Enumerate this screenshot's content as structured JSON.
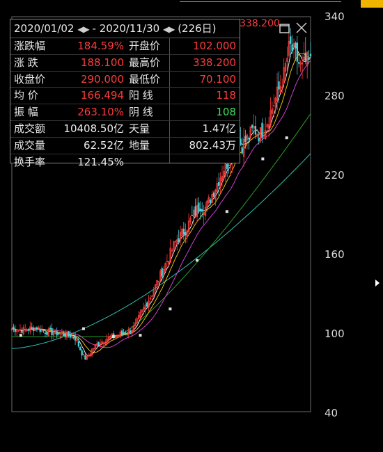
{
  "stats": {
    "date_from": "2020/01/02",
    "date_to": "2020/11/30",
    "sep": "-",
    "days": "(226日)",
    "rows": [
      {
        "l1": "涨跌幅",
        "v1": "184.59%",
        "c1": "red",
        "l2": "开盘价",
        "v2": "102.000",
        "c2": "red"
      },
      {
        "l1": "涨  跌",
        "v1": "188.100",
        "c1": "red",
        "l2": "最高价",
        "v2": "338.200",
        "c2": "red"
      },
      {
        "l1": "收盘价",
        "v1": "290.000",
        "c1": "red",
        "l2": "最低价",
        "v2": "70.100",
        "c2": "red"
      },
      {
        "l1": "均  价",
        "v1": "166.494",
        "c1": "red",
        "l2": "阳  线",
        "v2": "118",
        "c2": "red"
      },
      {
        "l1": "振  幅",
        "v1": "263.10%",
        "c1": "red",
        "l2": "阴  线",
        "v2": "108",
        "c2": "green"
      },
      {
        "l1": "成交额",
        "v1": "10408.50亿",
        "c1": "white",
        "l2": "天量",
        "v2": "1.47亿",
        "c2": "white"
      },
      {
        "l1": "成交量",
        "v1": "62.52亿",
        "c1": "white",
        "l2": "地量",
        "v2": "802.43万",
        "c2": "white"
      },
      {
        "l1": "换手率",
        "v1": "121.45%",
        "c1": "white",
        "l2": "",
        "v2": "",
        "c2": "white"
      }
    ]
  },
  "max_price_label": "338.200",
  "icons": {
    "restore": "restore-icon",
    "close": "close-icon",
    "arrow_right": "caret-right-icon"
  },
  "colors": {
    "up": "#ff3b3b",
    "down": "#3ee05a",
    "ma5": "#e8e8e8",
    "ma10": "#f0c000",
    "ma20": "#d040d0",
    "ma60": "#2aa02a",
    "ma120": "#30c0b0"
  },
  "chart_data": {
    "type": "candlestick",
    "y_ticks": [
      340,
      280,
      220,
      160,
      100,
      40
    ],
    "ylim": [
      40,
      340
    ],
    "close_path": [
      [
        0,
        103
      ],
      [
        0.04,
        102
      ],
      [
        0.08,
        104
      ],
      [
        0.11,
        101
      ],
      [
        0.14,
        100
      ],
      [
        0.17,
        99
      ],
      [
        0.19,
        98
      ],
      [
        0.21,
        97
      ],
      [
        0.22,
        92
      ],
      [
        0.24,
        82
      ],
      [
        0.25,
        80
      ],
      [
        0.27,
        88
      ],
      [
        0.29,
        92
      ],
      [
        0.32,
        96
      ],
      [
        0.35,
        98
      ],
      [
        0.38,
        100
      ],
      [
        0.41,
        104
      ],
      [
        0.44,
        118
      ],
      [
        0.47,
        130
      ],
      [
        0.5,
        145
      ],
      [
        0.53,
        160
      ],
      [
        0.55,
        170
      ],
      [
        0.58,
        178
      ],
      [
        0.61,
        190
      ],
      [
        0.63,
        197
      ],
      [
        0.65,
        195
      ],
      [
        0.67,
        205
      ],
      [
        0.69,
        215
      ],
      [
        0.71,
        225
      ],
      [
        0.73,
        232
      ],
      [
        0.75,
        250
      ],
      [
        0.77,
        242
      ],
      [
        0.79,
        248
      ],
      [
        0.81,
        255
      ],
      [
        0.83,
        250
      ],
      [
        0.85,
        258
      ],
      [
        0.87,
        270
      ],
      [
        0.89,
        282
      ],
      [
        0.91,
        295
      ],
      [
        0.93,
        318
      ],
      [
        0.95,
        310
      ],
      [
        0.97,
        300
      ],
      [
        0.985,
        306
      ],
      [
        1,
        305
      ]
    ],
    "ma60_markers": [
      [
        0.03,
        98
      ],
      [
        0.24,
        103
      ],
      [
        0.34,
        97
      ],
      [
        0.43,
        98
      ],
      [
        0.53,
        118
      ],
      [
        0.62,
        155
      ],
      [
        0.72,
        192
      ],
      [
        0.84,
        232
      ],
      [
        0.92,
        248
      ]
    ]
  }
}
